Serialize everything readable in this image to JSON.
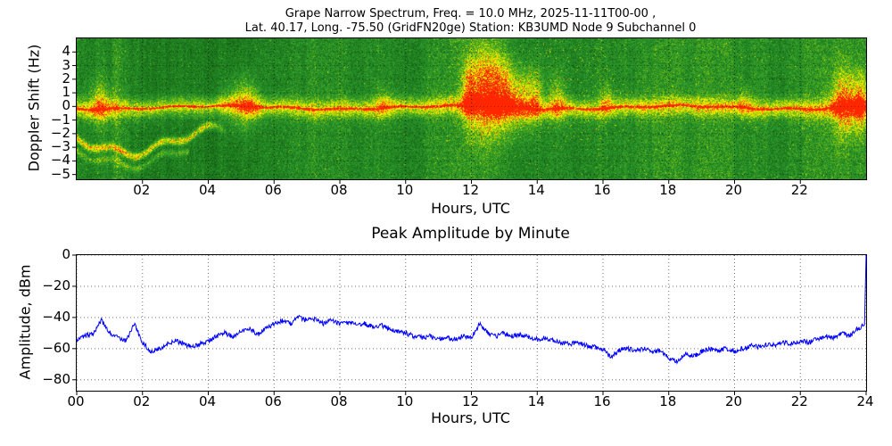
{
  "chart_data": [
    {
      "id": "spectrogram",
      "type": "heatmap",
      "title_line1": "Grape Narrow Spectrum, Freq. = 10.0 MHz, 2025-11-11T00-00 ,",
      "title_line2": "Lat.  40.17, Long. -75.50 (GridFN20ge) Station: KB3UMD Node 9 Subchannel 0",
      "xlabel": "Hours, UTC",
      "ylabel": "Doppler Shift (Hz)",
      "xlim": [
        0,
        24
      ],
      "ylim": [
        -5.35,
        5.0
      ],
      "xticks": {
        "values": [
          2,
          4,
          6,
          8,
          10,
          12,
          14,
          16,
          18,
          20,
          22
        ],
        "labels": [
          "02",
          "04",
          "06",
          "08",
          "10",
          "12",
          "14",
          "16",
          "18",
          "20",
          "22"
        ]
      },
      "yticks": {
        "values": [
          4,
          3,
          2,
          1,
          0,
          -1,
          -2,
          -3,
          -4,
          -5
        ],
        "labels": [
          "4",
          "3",
          "2",
          "1",
          "0",
          "−1",
          "−2",
          "−3",
          "−4",
          "−5"
        ]
      },
      "colormap": [
        [
          0,
          "#0a3d0a"
        ],
        [
          0.32,
          "#1e7d1e"
        ],
        [
          0.5,
          "#2f9e2f"
        ],
        [
          0.62,
          "#6cb912"
        ],
        [
          0.74,
          "#c8dc00"
        ],
        [
          0.84,
          "#ffff00"
        ],
        [
          0.93,
          "#ffa500"
        ],
        [
          1,
          "#ff2600"
        ]
      ],
      "features": {
        "carrier_hz": 0,
        "carrier_description": "thin red carrier trace near 0 Hz inside a bright yellow band about 1 Hz wide",
        "early_trace": {
          "t_range": [
            0,
            4.6
          ],
          "hz_range": [
            -3.8,
            -1.5
          ],
          "description": "wavy secondary Doppler trace during 00-04 UTC"
        },
        "plumes": [
          {
            "t": 0.7,
            "spread": 0.25,
            "strength": 0.45,
            "f_lo": -1.5,
            "f_hi": 2.0
          },
          {
            "t": 4.9,
            "spread": 0.3,
            "strength": 0.4,
            "f_lo": -2.0,
            "f_hi": 2.5
          },
          {
            "t": 5.3,
            "spread": 0.2,
            "strength": 0.35,
            "f_lo": -1.5,
            "f_hi": 2.0
          },
          {
            "t": 9.3,
            "spread": 0.2,
            "strength": 0.3,
            "f_lo": -1.0,
            "f_hi": 1.5
          },
          {
            "t": 11.9,
            "spread": 0.15,
            "strength": 0.55,
            "f_lo": -1.5,
            "f_hi": 3.5
          },
          {
            "t": 12.35,
            "spread": 0.3,
            "strength": 0.85,
            "f_lo": -2.5,
            "f_hi": 4.5
          },
          {
            "t": 12.9,
            "spread": 0.25,
            "strength": 0.65,
            "f_lo": -2.0,
            "f_hi": 4.0
          },
          {
            "t": 13.4,
            "spread": 0.3,
            "strength": 0.55,
            "f_lo": -2.0,
            "f_hi": 3.0
          },
          {
            "t": 13.9,
            "spread": 0.2,
            "strength": 0.45,
            "f_lo": -1.5,
            "f_hi": 3.0
          },
          {
            "t": 14.6,
            "spread": 0.2,
            "strength": 0.38,
            "f_lo": -1.5,
            "f_hi": 2.5
          },
          {
            "t": 16.1,
            "spread": 0.15,
            "strength": 0.32,
            "f_lo": -1.0,
            "f_hi": 2.0
          },
          {
            "t": 20.3,
            "spread": 0.15,
            "strength": 0.28,
            "f_lo": -1.0,
            "f_hi": 1.5
          },
          {
            "t": 23.35,
            "spread": 0.3,
            "strength": 0.7,
            "f_lo": -2.5,
            "f_hi": 3.0
          },
          {
            "t": 23.85,
            "spread": 0.15,
            "strength": 0.55,
            "f_lo": -2.0,
            "f_hi": 2.5
          }
        ]
      }
    },
    {
      "id": "amplitude",
      "type": "line",
      "title": "Peak Amplitude by Minute",
      "xlabel": "Hours, UTC",
      "ylabel": "Amplitude, dBm",
      "xlim": [
        0,
        24
      ],
      "ylim": [
        -87,
        0
      ],
      "xticks": {
        "values": [
          0,
          2,
          4,
          6,
          8,
          10,
          12,
          14,
          16,
          18,
          20,
          22,
          24
        ],
        "labels": [
          "00",
          "02",
          "04",
          "06",
          "08",
          "10",
          "12",
          "14",
          "16",
          "18",
          "20",
          "22",
          "24"
        ]
      },
      "yticks": {
        "values": [
          0,
          -20,
          -40,
          -60,
          -80
        ],
        "labels": [
          "0",
          "−20",
          "−40",
          "−60",
          "−80"
        ]
      },
      "line_color": "#0000ff",
      "grid": true,
      "points": [
        [
          0,
          -54
        ],
        [
          0.25,
          -52
        ],
        [
          0.5,
          -50
        ],
        [
          0.75,
          -42
        ],
        [
          1,
          -50
        ],
        [
          1.25,
          -53
        ],
        [
          1.5,
          -55
        ],
        [
          1.75,
          -44
        ],
        [
          2,
          -56
        ],
        [
          2.25,
          -62
        ],
        [
          2.5,
          -60
        ],
        [
          2.75,
          -57
        ],
        [
          3,
          -55
        ],
        [
          3.25,
          -57
        ],
        [
          3.5,
          -59
        ],
        [
          3.75,
          -57
        ],
        [
          4,
          -55
        ],
        [
          4.25,
          -52
        ],
        [
          4.5,
          -50
        ],
        [
          4.75,
          -52
        ],
        [
          5,
          -49
        ],
        [
          5.25,
          -47
        ],
        [
          5.5,
          -51
        ],
        [
          5.75,
          -47
        ],
        [
          6,
          -44
        ],
        [
          6.25,
          -42
        ],
        [
          6.5,
          -44
        ],
        [
          6.75,
          -40
        ],
        [
          7,
          -42
        ],
        [
          7.25,
          -41
        ],
        [
          7.5,
          -44
        ],
        [
          7.75,
          -42
        ],
        [
          8,
          -44
        ],
        [
          8.25,
          -43
        ],
        [
          8.5,
          -45
        ],
        [
          8.75,
          -44
        ],
        [
          9,
          -46
        ],
        [
          9.25,
          -45
        ],
        [
          9.5,
          -47
        ],
        [
          9.75,
          -49
        ],
        [
          10,
          -50
        ],
        [
          10.25,
          -52
        ],
        [
          10.5,
          -53
        ],
        [
          10.75,
          -52
        ],
        [
          11,
          -54
        ],
        [
          11.25,
          -53
        ],
        [
          11.5,
          -54
        ],
        [
          11.75,
          -52
        ],
        [
          12,
          -53
        ],
        [
          12.25,
          -44
        ],
        [
          12.5,
          -50
        ],
        [
          12.75,
          -52
        ],
        [
          13,
          -50
        ],
        [
          13.25,
          -52
        ],
        [
          13.5,
          -51
        ],
        [
          13.75,
          -53
        ],
        [
          14,
          -54
        ],
        [
          14.25,
          -53
        ],
        [
          14.5,
          -55
        ],
        [
          14.75,
          -56
        ],
        [
          15,
          -57
        ],
        [
          15.25,
          -56
        ],
        [
          15.5,
          -58
        ],
        [
          15.75,
          -59
        ],
        [
          16,
          -60
        ],
        [
          16.25,
          -66
        ],
        [
          16.5,
          -61
        ],
        [
          16.75,
          -60
        ],
        [
          17,
          -61
        ],
        [
          17.25,
          -60
        ],
        [
          17.5,
          -62
        ],
        [
          17.75,
          -61
        ],
        [
          18,
          -66
        ],
        [
          18.25,
          -68
        ],
        [
          18.5,
          -63
        ],
        [
          18.75,
          -65
        ],
        [
          19,
          -62
        ],
        [
          19.25,
          -60
        ],
        [
          19.5,
          -61
        ],
        [
          19.75,
          -60
        ],
        [
          20,
          -62
        ],
        [
          20.25,
          -60
        ],
        [
          20.5,
          -58
        ],
        [
          20.75,
          -59
        ],
        [
          21,
          -57
        ],
        [
          21.25,
          -58
        ],
        [
          21.5,
          -56
        ],
        [
          21.75,
          -57
        ],
        [
          22,
          -55
        ],
        [
          22.25,
          -56
        ],
        [
          22.5,
          -54
        ],
        [
          22.75,
          -52
        ],
        [
          23,
          -53
        ],
        [
          23.25,
          -50
        ],
        [
          23.5,
          -52
        ],
        [
          23.75,
          -47
        ],
        [
          23.95,
          -45
        ],
        [
          24,
          0
        ]
      ]
    }
  ]
}
